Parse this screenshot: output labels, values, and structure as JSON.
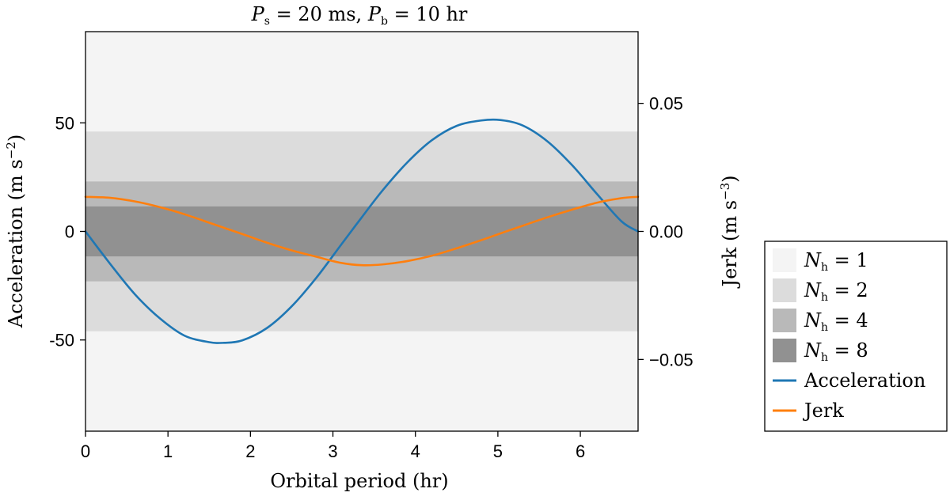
{
  "chart_data": {
    "type": "line",
    "title": "P_s = 20 ms,  P_b = 10 hr",
    "title_parts": {
      "ps_symbol": "P",
      "ps_sub": "s",
      "ps_value": " = 20 ms,  ",
      "pb_symbol": "P",
      "pb_sub": "b",
      "pb_value": " = 10 hr"
    },
    "xlabel": "Orbital period (hr)",
    "ylabel_left": "Acceleration (m s",
    "ylabel_left_exp": "−2",
    "ylabel_left_close": ")",
    "ylabel_right": "Jerk (m s",
    "ylabel_right_exp": "−3",
    "ylabel_right_close": ")",
    "xlim": [
      0,
      6.7
    ],
    "ylim_left": [
      -92,
      92
    ],
    "ylim_right": [
      -0.078,
      0.078
    ],
    "x_ticks": [
      {
        "value": 0,
        "label": "0"
      },
      {
        "value": 1,
        "label": "1"
      },
      {
        "value": 2,
        "label": "2"
      },
      {
        "value": 3,
        "label": "3"
      },
      {
        "value": 4,
        "label": "4"
      },
      {
        "value": 5,
        "label": "5"
      },
      {
        "value": 6,
        "label": "6"
      }
    ],
    "y_left_ticks": [
      {
        "value": 50,
        "label": "50"
      },
      {
        "value": 0,
        "label": "0"
      },
      {
        "value": -50,
        "label": "-50"
      }
    ],
    "y_right_ticks": [
      {
        "value": 0.05,
        "label": "0.05"
      },
      {
        "value": 0,
        "label": "0.00"
      },
      {
        "value": -0.05,
        "label": "−0.05"
      }
    ],
    "bands": [
      {
        "nh": "1",
        "half_width": 92,
        "color": "#f4f4f4"
      },
      {
        "nh": "2",
        "half_width": 46,
        "color": "#dcdcdc"
      },
      {
        "nh": "4",
        "half_width": 23,
        "color": "#b9b9b9"
      },
      {
        "nh": "8",
        "half_width": 11.5,
        "color": "#919191"
      }
    ],
    "series": [
      {
        "name": "Acceleration",
        "axis": "left",
        "color": "#1f77b4",
        "x": [
          0,
          0.3,
          0.6,
          0.9,
          1.2,
          1.5,
          1.68,
          1.9,
          2.2,
          2.5,
          2.8,
          3.1,
          3.35,
          3.6,
          3.9,
          4.2,
          4.5,
          4.8,
          5.03,
          5.3,
          5.6,
          5.9,
          6.2,
          6.5,
          6.7
        ],
        "values": [
          0,
          -15,
          -29,
          -40,
          -48,
          -51,
          -51.3,
          -50.2,
          -44.5,
          -34.5,
          -21.3,
          -6.1,
          6.5,
          18.8,
          31.7,
          42,
          48.6,
          51.1,
          51.3,
          48.8,
          41.5,
          30.5,
          17.3,
          4.6,
          0
        ]
      },
      {
        "name": "Jerk",
        "axis": "right",
        "color": "#ff7f0e",
        "x": [
          0,
          0.3,
          0.6,
          0.9,
          1.2,
          1.5,
          1.68,
          1.9,
          2.2,
          2.5,
          2.8,
          3.1,
          3.35,
          3.6,
          3.9,
          4.2,
          4.5,
          4.8,
          5.03,
          5.3,
          5.6,
          5.9,
          6.2,
          6.5,
          6.7
        ],
        "values": [
          0.0135,
          0.0131,
          0.0117,
          0.0095,
          0.0067,
          0.0034,
          0.0014,
          -0.001,
          -0.0044,
          -0.0074,
          -0.0099,
          -0.0123,
          -0.0132,
          -0.0129,
          -0.0116,
          -0.0095,
          -0.0066,
          -0.0034,
          -0.0008,
          0.0022,
          0.0055,
          0.0085,
          0.0112,
          0.013,
          0.0135
        ]
      }
    ],
    "legend": {
      "placement": "right",
      "band_label_symbol": "N",
      "band_label_sub": "h",
      "band_label_eq": " = "
    }
  }
}
